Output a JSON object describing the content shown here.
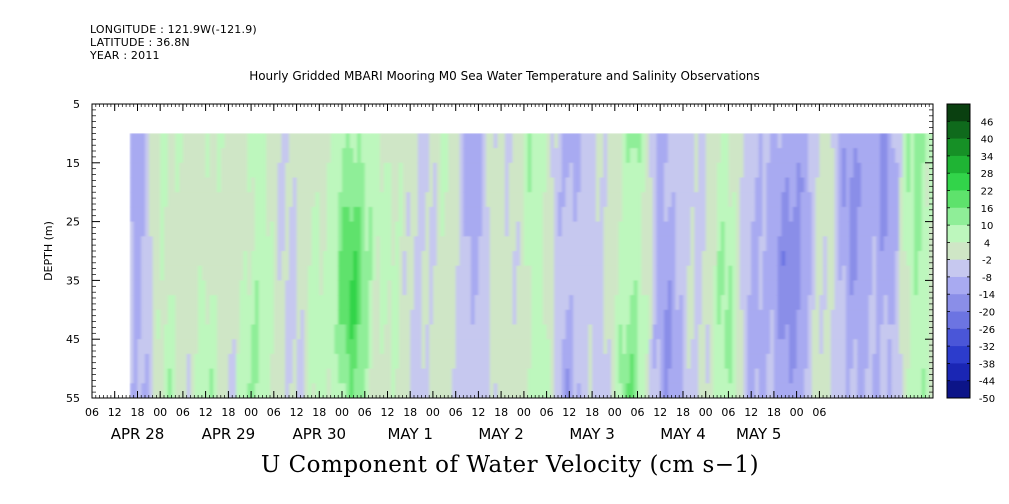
{
  "header": {
    "longitude": "LONGITUDE : 121.9W(-121.9)",
    "latitude": "LATITUDE : 36.8N",
    "year": "YEAR : 2011"
  },
  "chart_data": {
    "type": "heatmap",
    "title": "Hourly Gridded MBARI Mooring M0 Sea Water Temperature and Salinity Observations",
    "variable_label": "U Component of Water Velocity (cm s−1)",
    "ylabel": "DEPTH (m)",
    "ylim": [
      55,
      5
    ],
    "y_ticks": [
      5,
      15,
      25,
      35,
      45,
      55
    ],
    "data_depth_range": [
      10,
      55
    ],
    "x_range_hours": [
      0,
      222
    ],
    "x_tick_labels": [
      "06",
      "12",
      "18",
      "00",
      "06",
      "12",
      "18",
      "00",
      "06",
      "12",
      "18",
      "00",
      "06",
      "12",
      "18",
      "00",
      "06",
      "12",
      "18",
      "00",
      "06",
      "12",
      "18",
      "00",
      "06",
      "12",
      "18",
      "00",
      "06",
      "12",
      "18",
      "00",
      "06"
    ],
    "date_labels": [
      "APR 28",
      "APR 29",
      "APR 30",
      "MAY  1",
      "MAY  2",
      "MAY  3",
      "MAY  4",
      "MAY  5"
    ],
    "colorbar": {
      "labels": [
        "46",
        "40",
        "34",
        "28",
        "22",
        "16",
        "10",
        "4",
        "-2",
        "-8",
        "-14",
        "-20",
        "-26",
        "-32",
        "-38",
        "-44",
        "-50"
      ],
      "levels": [
        52,
        46,
        40,
        34,
        28,
        22,
        16,
        10,
        4,
        -2,
        -8,
        -14,
        -20,
        -26,
        -32,
        -38,
        -44,
        -50
      ],
      "colors": [
        "#0a4010",
        "#0f6a1c",
        "#169026",
        "#1fb434",
        "#32d44a",
        "#5ee26c",
        "#8fee98",
        "#bdf7bd",
        "#cfe6c6",
        "#c6c8ef",
        "#a8aaf1",
        "#8a8ee8",
        "#6c74e2",
        "#4a56d8",
        "#2c3ccc",
        "#1a26b4",
        "#0c1488"
      ]
    }
  }
}
